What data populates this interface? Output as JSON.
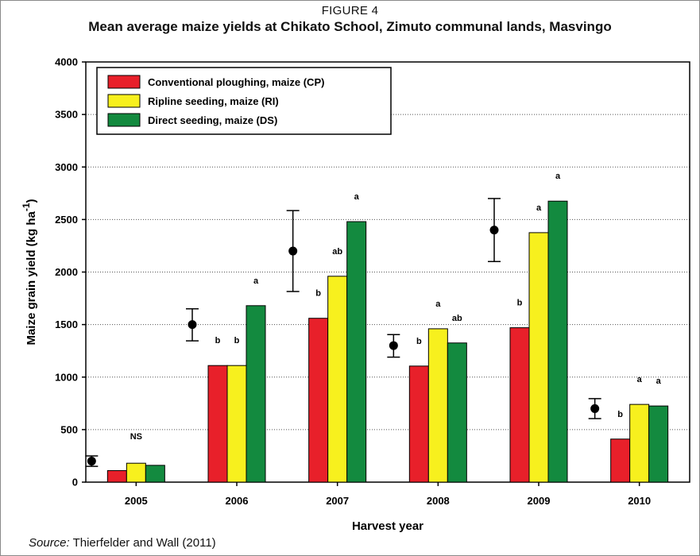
{
  "figure_label": "FIGURE 4",
  "source": {
    "prefix": "Source:",
    "text": " Thierfelder and Wall (2011)"
  },
  "colors": {
    "cp": "#e8202a",
    "ri": "#f7f01e",
    "ds": "#138a3f"
  },
  "chart_data": {
    "type": "bar",
    "title": "Mean average maize yields at Chikato School, Zimuto communal lands, Masvingo",
    "xlabel": "Harvest year",
    "ylabel": "Maize grain yield (kg ha",
    "ylabel_sup": "-1",
    "ylabel_close": ")",
    "ylim": [
      0,
      4000
    ],
    "yticks": [
      "0",
      "500",
      "1000",
      "1500",
      "2000",
      "2500",
      "3000",
      "3500",
      "4000"
    ],
    "grid": "dotted horizontal",
    "legend_position": "top-left",
    "categories": [
      "2005",
      "2006",
      "2007",
      "2008",
      "2009",
      "2010"
    ],
    "series": [
      {
        "name": "Conventional ploughing, maize (CP)",
        "key": "cp",
        "values": [
          110,
          1110,
          1560,
          1105,
          1470,
          410
        ],
        "labels": [
          "",
          "b",
          "b",
          "b",
          "b",
          "b"
        ]
      },
      {
        "name": "Ripline seeding, maize (RI)",
        "key": "ri",
        "values": [
          180,
          1110,
          1960,
          1460,
          2375,
          740
        ],
        "labels": [
          "",
          "b",
          "ab",
          "a",
          "a",
          "a"
        ]
      },
      {
        "name": "Direct seeding, maize (DS)",
        "key": "ds",
        "values": [
          160,
          1680,
          2480,
          1325,
          2675,
          725
        ],
        "labels": [
          "",
          "a",
          "a",
          "ab",
          "a",
          "a"
        ]
      }
    ],
    "error_bars": [
      {
        "mean": 200,
        "low": 150,
        "high": 250
      },
      {
        "mean": 1500,
        "low": 1345,
        "high": 1650
      },
      {
        "mean": 2200,
        "low": 1815,
        "high": 2585
      },
      {
        "mean": 1300,
        "low": 1190,
        "high": 1405
      },
      {
        "mean": 2400,
        "low": 2100,
        "high": 2700
      },
      {
        "mean": 700,
        "low": 605,
        "high": 795
      }
    ],
    "annotations": [
      {
        "category": "2005",
        "text": "NS"
      }
    ]
  }
}
